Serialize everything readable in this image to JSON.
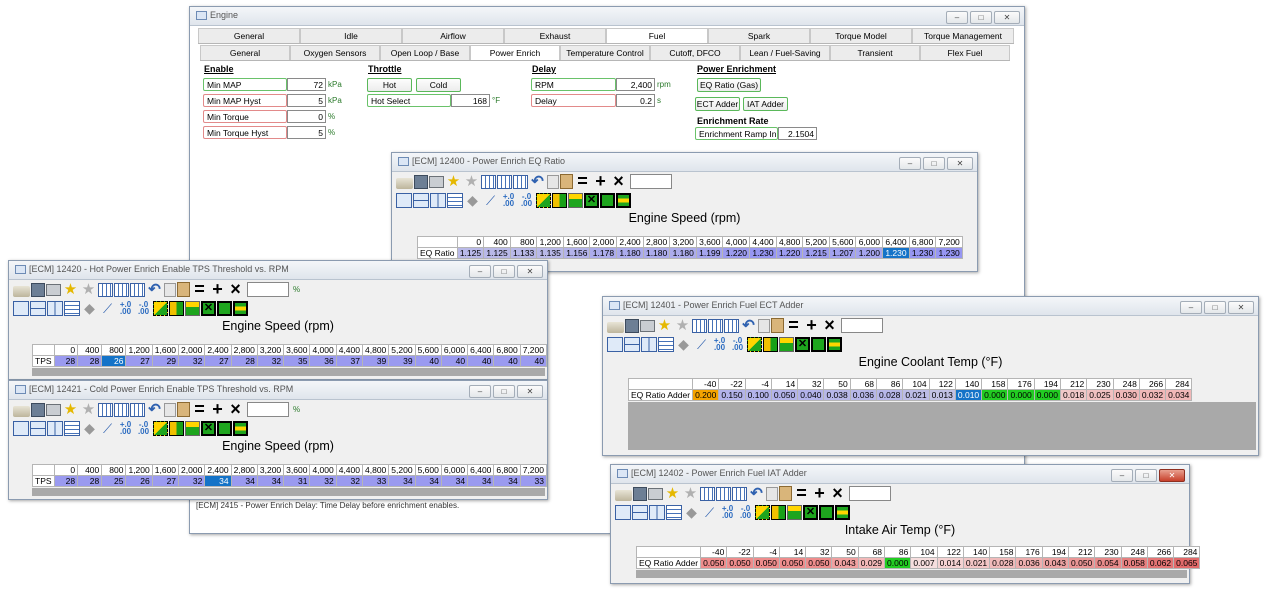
{
  "main": {
    "title": "Engine",
    "top_tabs": [
      "General",
      "Idle",
      "Airflow",
      "Exhaust",
      "Fuel",
      "Spark",
      "Torque Model",
      "Torque Management"
    ],
    "sub_tabs": [
      "General",
      "Oxygen Sensors",
      "Open Loop / Base",
      "Power Enrich",
      "Temperature Control",
      "Cutoff, DFCO",
      "Lean / Fuel-Saving",
      "Transient",
      "Flex Fuel"
    ],
    "enable": {
      "heading": "Enable",
      "fields": [
        {
          "label": "Min MAP",
          "value": "72",
          "unit": "kPa"
        },
        {
          "label": "Min MAP Hyst",
          "value": "5",
          "unit": "kPa"
        },
        {
          "label": "Min Torque",
          "value": "0",
          "unit": "%"
        },
        {
          "label": "Min Torque Hyst",
          "value": "5",
          "unit": "%"
        }
      ]
    },
    "throttle": {
      "heading": "Throttle",
      "hot_btn": "Hot",
      "cold_btn": "Cold",
      "hot_select_label": "Hot Select",
      "hot_select_value": "168",
      "hot_select_unit": "°F"
    },
    "delay": {
      "heading": "Delay",
      "rpm_label": "RPM",
      "rpm_value": "2,400",
      "rpm_unit": "rpm",
      "delay_label": "Delay",
      "delay_value": "0.2",
      "delay_unit": "s"
    },
    "power_enrichment": {
      "heading": "Power Enrichment",
      "eq_ratio_btn": "EQ Ratio (Gas)",
      "ect_btn": "ECT Adder",
      "iat_btn": "IAT Adder"
    },
    "enrichment_rate": {
      "heading": "Enrichment Rate",
      "ramp_label": "Enrichment Ramp In",
      "ramp_value": "2.1504"
    },
    "status": "[ECM] 2415 - Power Enrich Delay: Time Delay before enrichment enables."
  },
  "w12400": {
    "title": "[ECM] 12400 - Power Enrich EQ Ratio",
    "axis": "Engine Speed (rpm)",
    "cols": [
      "0",
      "400",
      "800",
      "1,200",
      "1,600",
      "2,000",
      "2,400",
      "2,800",
      "3,200",
      "3,600",
      "4,000",
      "4,400",
      "4,800",
      "5,200",
      "5,600",
      "6,000",
      "6,400",
      "6,800",
      "7,200"
    ],
    "row_label": "EQ Ratio",
    "values": [
      "1.125",
      "1.125",
      "1.133",
      "1.135",
      "1.156",
      "1.178",
      "1.180",
      "1.180",
      "1.180",
      "1.199",
      "1.220",
      "1.230",
      "1.220",
      "1.215",
      "1.207",
      "1.200",
      "1.230",
      "1.230",
      "1.230"
    ],
    "colors": [
      "#b9b9e8",
      "#b9b9e8",
      "#b9b9e8",
      "#b9b9e8",
      "#b3b3ea",
      "#acacec",
      "#acacec",
      "#acacec",
      "#acacec",
      "#a5a5ee",
      "#9c9cf0",
      "#9696f2",
      "#9c9cf0",
      "#9e9eef",
      "#a2a2ef",
      "#a5a5ee",
      "#1473c8",
      "#9696f2",
      "#9696f2"
    ]
  },
  "w12420": {
    "title": "[ECM] 12420 - Hot Power Enrich Enable TPS Threshold vs. RPM",
    "unit": "%",
    "axis": "Engine Speed (rpm)",
    "cols": [
      "0",
      "400",
      "800",
      "1,200",
      "1,600",
      "2,000",
      "2,400",
      "2,800",
      "3,200",
      "3,600",
      "4,000",
      "4,400",
      "4,800",
      "5,200",
      "5,600",
      "6,000",
      "6,400",
      "6,800",
      "7,200"
    ],
    "row_label": "TPS",
    "values": [
      "28",
      "28",
      "26",
      "27",
      "29",
      "32",
      "27",
      "28",
      "32",
      "35",
      "36",
      "37",
      "39",
      "39",
      "40",
      "40",
      "40",
      "40",
      "40"
    ]
  },
  "w12421": {
    "title": "[ECM] 12421 - Cold Power Enrich Enable TPS Threshold vs. RPM",
    "unit": "%",
    "axis": "Engine Speed (rpm)",
    "cols": [
      "0",
      "400",
      "800",
      "1,200",
      "1,600",
      "2,000",
      "2,400",
      "2,800",
      "3,200",
      "3,600",
      "4,000",
      "4,400",
      "4,800",
      "5,200",
      "5,600",
      "6,000",
      "6,400",
      "6,800",
      "7,200"
    ],
    "row_label": "TPS",
    "values": [
      "28",
      "28",
      "25",
      "26",
      "27",
      "32",
      "34",
      "34",
      "34",
      "31",
      "32",
      "32",
      "33",
      "34",
      "34",
      "34",
      "34",
      "34",
      "33"
    ]
  },
  "w12401": {
    "title": "[ECM] 12401 - Power Enrich Fuel ECT Adder",
    "axis": "Engine Coolant Temp (°F)",
    "cols": [
      "-40",
      "-22",
      "-4",
      "14",
      "32",
      "50",
      "68",
      "86",
      "104",
      "122",
      "140",
      "158",
      "176",
      "194",
      "212",
      "230",
      "248",
      "266",
      "284"
    ],
    "row_label": "EQ Ratio Adder",
    "values": [
      "0.200",
      "0.150",
      "0.100",
      "0.050",
      "0.040",
      "0.038",
      "0.036",
      "0.028",
      "0.021",
      "0.013",
      "0.010",
      "0.000",
      "0.000",
      "0.000",
      "0.018",
      "0.025",
      "0.030",
      "0.032",
      "0.034"
    ],
    "colors": [
      "#f5a300",
      "#b3b3ea",
      "#b3b3ea",
      "#b3b3ea",
      "#b3b3ea",
      "#b7b7e8",
      "#b7b7e8",
      "#b7b7e8",
      "#bcbce6",
      "#c1c1e4",
      "#1473c8",
      "#22cc22",
      "#22cc22",
      "#22cc22",
      "#f0c8c8",
      "#f0c0c0",
      "#f0b8b8",
      "#f0b8b8",
      "#f0b8b8"
    ]
  },
  "w12402": {
    "title": "[ECM] 12402 - Power Enrich Fuel IAT Adder",
    "axis": "Intake Air Temp (°F)",
    "cols": [
      "-40",
      "-22",
      "-4",
      "14",
      "32",
      "50",
      "68",
      "86",
      "104",
      "122",
      "140",
      "158",
      "176",
      "194",
      "212",
      "230",
      "248",
      "266",
      "284"
    ],
    "row_label": "EQ Ratio Adder",
    "values": [
      "0.050",
      "0.050",
      "0.050",
      "0.050",
      "0.050",
      "0.043",
      "0.029",
      "0.000",
      "0.007",
      "0.014",
      "0.021",
      "0.028",
      "0.036",
      "0.043",
      "0.050",
      "0.054",
      "0.058",
      "0.062",
      "0.065"
    ],
    "colors": [
      "#ee8c8c",
      "#ee8c8c",
      "#ee8c8c",
      "#ee8c8c",
      "#ee8c8c",
      "#f0a0a0",
      "#f2b8b8",
      "#22cc22",
      "#f6dede",
      "#f4d2d2",
      "#f2c6c6",
      "#f0baba",
      "#eeaeae",
      "#eca2a2",
      "#ea9696",
      "#e88a8a",
      "#e68080",
      "#e47474",
      "#e26a6a"
    ]
  }
}
